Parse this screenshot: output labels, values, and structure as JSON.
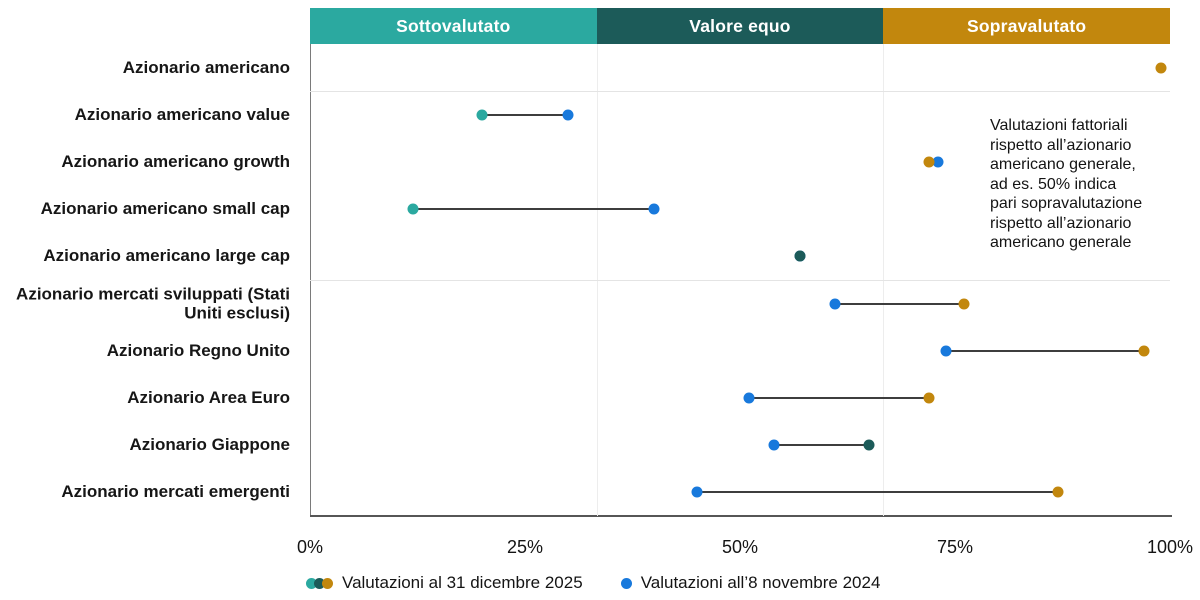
{
  "header": {
    "bands": [
      {
        "label": "Sottovalutato",
        "color": "#2BA9A0"
      },
      {
        "label": "Valore equo",
        "color": "#1C5B59"
      },
      {
        "label": "Sopravalutato",
        "color": "#C2870D"
      }
    ]
  },
  "chart_data": {
    "type": "scatter",
    "subtype": "dumbbell",
    "x_axis": {
      "min": 0,
      "max": 100,
      "ticks": [
        "0%",
        "25%",
        "50%",
        "75%",
        "100%"
      ]
    },
    "zone_boundaries": [
      33.33,
      66.67
    ],
    "zones": [
      "Sottovalutato",
      "Valore equo",
      "Sopravalutato"
    ],
    "colors": {
      "undervalued": "#2BA9A0",
      "fair": "#1C5B59",
      "overvalued": "#C2870D",
      "nov2024": "#1879DC"
    },
    "series_names": [
      "Valutazioni al 31 dicembre 2025",
      "Valutazioni all’8 novembre 2024"
    ],
    "rows": [
      {
        "category": "Azionario americano",
        "dec2025": 99,
        "nov2024": null
      },
      {
        "category": "Azionario americano value",
        "dec2025": 20,
        "nov2024": 30
      },
      {
        "category": "Azionario americano growth",
        "dec2025": 72,
        "nov2024": 73
      },
      {
        "category": "Azionario americano small cap",
        "dec2025": 12,
        "nov2024": 40
      },
      {
        "category": "Azionario americano large cap",
        "dec2025": 57,
        "nov2024": 57
      },
      {
        "category": "Azionario mercati sviluppati (Stati Uniti esclusi)",
        "dec2025": 76,
        "nov2024": 61
      },
      {
        "category": "Azionario Regno Unito",
        "dec2025": 97,
        "nov2024": 74
      },
      {
        "category": "Azionario Area Euro",
        "dec2025": 72,
        "nov2024": 51
      },
      {
        "category": "Azionario Giappone",
        "dec2025": 65,
        "nov2024": 54
      },
      {
        "category": "Azionario mercati emergenti",
        "dec2025": 87,
        "nov2024": 45
      }
    ],
    "separators_after_rows": [
      0,
      4
    ]
  },
  "annotation": "Valutazioni fattoriali\nrispetto all’azionario\namericano generale,\nad es. 50% indica\npari sopravalutazione\nrispetto all’azionario\namericano generale",
  "legend": [
    {
      "label": "Valutazioni al 31 dicembre 2025",
      "dots": [
        "#2BA9A0",
        "#1C5B59",
        "#C2870D"
      ]
    },
    {
      "label": "Valutazioni all’8 novembre 2024",
      "dots": [
        "#1879DC"
      ]
    }
  ]
}
